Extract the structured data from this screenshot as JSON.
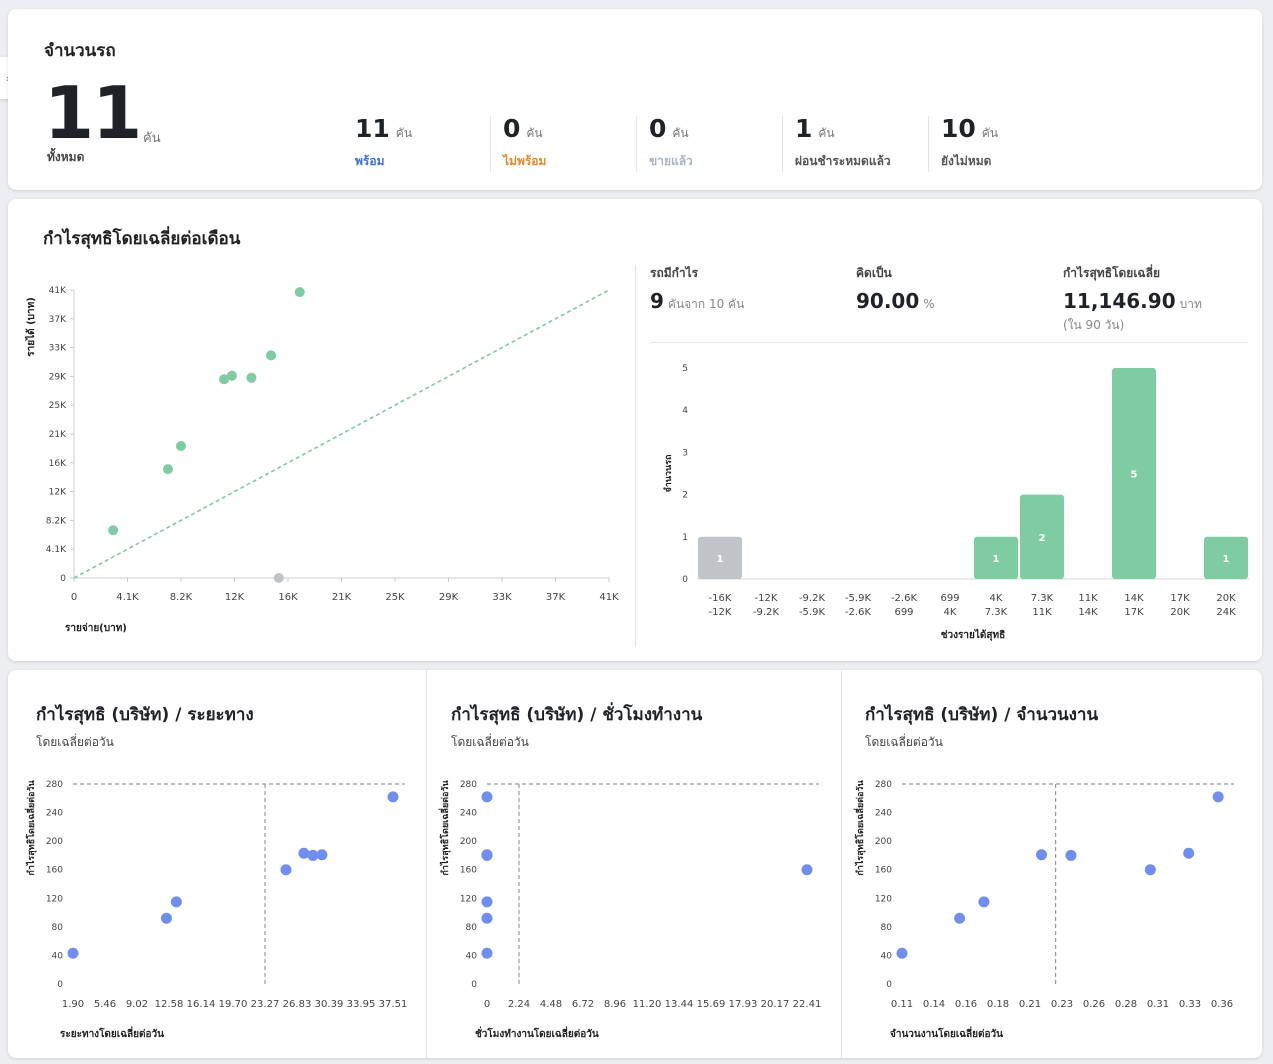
{
  "fleet": {
    "title": "จำนวนรถ",
    "total": "11",
    "total_unit": "คัน",
    "total_label": "ทั้งหมด",
    "stats": [
      {
        "value": "11",
        "unit": "คัน",
        "label": "พร้อม",
        "color": "#3f6fd8"
      },
      {
        "value": "0",
        "unit": "คัน",
        "label": "ไม่พร้อม",
        "color": "#e8892b"
      },
      {
        "value": "0",
        "unit": "คัน",
        "label": "ขายแล้ว",
        "color": "#a9b4c4"
      },
      {
        "value": "1",
        "unit": "คัน",
        "label": "ผ่อนชำระหมดแล้ว",
        "color": "#555555"
      },
      {
        "value": "10",
        "unit": "คัน",
        "label": "ยังไม่หมด",
        "color": "#555555"
      }
    ]
  },
  "profit": {
    "title": "กำไรสุทธิโดยเฉลี่ยต่อเดือน",
    "summary": {
      "profitable_label": "รถมีกำไร",
      "profitable_value": "9",
      "profitable_unit": "คันจาก 10 คัน",
      "percent_label": "คิดเป็น",
      "percent_value": "90.00",
      "percent_unit": "%",
      "avg_label": "กำไรสุทธิโดยเฉลี่ย",
      "avg_value": "11,146.90",
      "avg_unit": "บาท",
      "avg_note": "(ใน 90 วัน)"
    }
  },
  "bottom": {
    "subtitle": "โดยเฉลี่ยต่อวัน",
    "panels": [
      {
        "title": "กำไรสุทธิ (บริษัท) / ระยะทาง"
      },
      {
        "title": "กำไรสุทธิ (บริษัท) / ชั่วโมงทำงาน"
      },
      {
        "title": "กำไรสุทธิ (บริษัท) / จำนวนงาน"
      }
    ]
  },
  "colors": {
    "green": "#7fcba2",
    "gray": "#bfc4c9",
    "blue": "#6f8ef0",
    "refline": "#7fcba2"
  },
  "chart_data": [
    {
      "type": "scatter",
      "name": "income-vs-expense",
      "xlabel": "รายจ่าย(บาท)",
      "ylabel": "รายได้ (บาท)",
      "xlim": [
        0,
        41000
      ],
      "ylim": [
        0,
        41000
      ],
      "x_ticks": [
        "0",
        "4.1K",
        "8.2K",
        "12K",
        "16K",
        "21K",
        "25K",
        "29K",
        "33K",
        "37K",
        "41K"
      ],
      "y_ticks": [
        "0",
        "4.1K",
        "8.2K",
        "12K",
        "16K",
        "21K",
        "25K",
        "29K",
        "33K",
        "37K",
        "41K"
      ],
      "reference_line": "y = x",
      "points": [
        {
          "x": 3000,
          "y": 6800,
          "profit": true
        },
        {
          "x": 7200,
          "y": 15500,
          "profit": true
        },
        {
          "x": 8200,
          "y": 18800,
          "profit": true
        },
        {
          "x": 11500,
          "y": 28300,
          "profit": true
        },
        {
          "x": 12100,
          "y": 28800,
          "profit": true
        },
        {
          "x": 13600,
          "y": 28500,
          "profit": true
        },
        {
          "x": 15100,
          "y": 31700,
          "profit": true
        },
        {
          "x": 17300,
          "y": 40700,
          "profit": true
        },
        {
          "x": 15700,
          "y": 0,
          "profit": false
        }
      ]
    },
    {
      "type": "bar",
      "name": "profit-histogram",
      "xlabel": "ช่วงรายได้สุทธิ",
      "ylabel": "จำนวนรถ",
      "ylim": [
        0,
        5
      ],
      "y_ticks": [
        "0",
        "1",
        "2",
        "3",
        "4",
        "5"
      ],
      "categories": [
        [
          "-16K",
          "-12K"
        ],
        [
          "-12K",
          "-9.2K"
        ],
        [
          "-9.2K",
          "-5.9K"
        ],
        [
          "-5.9K",
          "-2.6K"
        ],
        [
          "-2.6K",
          "699"
        ],
        [
          "699",
          "4K"
        ],
        [
          "4K",
          "7.3K"
        ],
        [
          "7.3K",
          "11K"
        ],
        [
          "11K",
          "14K"
        ],
        [
          "14K",
          "17K"
        ],
        [
          "17K",
          "20K"
        ],
        [
          "20K",
          "24K"
        ]
      ],
      "values": [
        1,
        0,
        0,
        0,
        0,
        0,
        1,
        2,
        0,
        5,
        0,
        1
      ],
      "negative": [
        true,
        true,
        true,
        true,
        true,
        false,
        false,
        false,
        false,
        false,
        false,
        false
      ]
    },
    {
      "type": "scatter",
      "name": "profit-vs-distance",
      "xlabel": "ระยะทางโดยเฉลี่ยต่อวัน",
      "ylabel": "กำไรสุทธิโดยเฉลี่ยต่อวัน",
      "xlim": [
        1.9,
        37.51
      ],
      "ylim": [
        0,
        280
      ],
      "x_ticks": [
        "1.90",
        "5.46",
        "9.02",
        "12.58",
        "16.14",
        "19.70",
        "23.27",
        "26.83",
        "30.39",
        "33.95",
        "37.51"
      ],
      "y_ticks": [
        "0",
        "40",
        "80",
        "120",
        "160",
        "200",
        "240",
        "280"
      ],
      "ref_x": 23.27,
      "ref_y": 280,
      "points": [
        [
          1.9,
          43
        ],
        [
          12.3,
          92
        ],
        [
          13.4,
          115
        ],
        [
          25.6,
          160
        ],
        [
          27.6,
          183
        ],
        [
          28.6,
          180
        ],
        [
          29.6,
          181
        ],
        [
          37.51,
          262
        ]
      ]
    },
    {
      "type": "scatter",
      "name": "profit-vs-hours",
      "xlabel": "ชั่วโมงทำงานโดยเฉลี่ยต่อวัน",
      "ylabel": "กำไรสุทธิโดยเฉลี่ยต่อวัน",
      "xlim": [
        0,
        22.41
      ],
      "ylim": [
        0,
        280
      ],
      "x_ticks": [
        "0",
        "2.24",
        "4.48",
        "6.72",
        "8.96",
        "11.20",
        "13.44",
        "15.69",
        "17.93",
        "20.17",
        "22.41"
      ],
      "y_ticks": [
        "0",
        "40",
        "80",
        "120",
        "160",
        "200",
        "240",
        "280"
      ],
      "ref_x": 2.24,
      "ref_y": 280,
      "points": [
        [
          0,
          43
        ],
        [
          0,
          92
        ],
        [
          0,
          115
        ],
        [
          0,
          180
        ],
        [
          0,
          181
        ],
        [
          0,
          262
        ],
        [
          22.41,
          160
        ]
      ]
    },
    {
      "type": "scatter",
      "name": "profit-vs-jobs",
      "xlabel": "จำนวนงานโดยเฉลี่ยต่อวัน",
      "ylabel": "กำไรสุทธิโดยเฉลี่ยต่อวัน",
      "xlim": [
        0.11,
        0.36
      ],
      "ylim": [
        0,
        280
      ],
      "x_ticks": [
        "0.11",
        "0.14",
        "0.16",
        "0.18",
        "0.21",
        "0.23",
        "0.26",
        "0.28",
        "0.31",
        "0.33",
        "0.36"
      ],
      "y_ticks": [
        "0",
        "40",
        "80",
        "120",
        "160",
        "200",
        "240",
        "280"
      ],
      "ref_x": 0.23,
      "ref_y": 280,
      "points": [
        [
          0.11,
          43
        ],
        [
          0.155,
          92
        ],
        [
          0.174,
          115
        ],
        [
          0.219,
          181
        ],
        [
          0.242,
          180
        ],
        [
          0.304,
          160
        ],
        [
          0.334,
          183
        ],
        [
          0.357,
          262
        ]
      ]
    }
  ]
}
